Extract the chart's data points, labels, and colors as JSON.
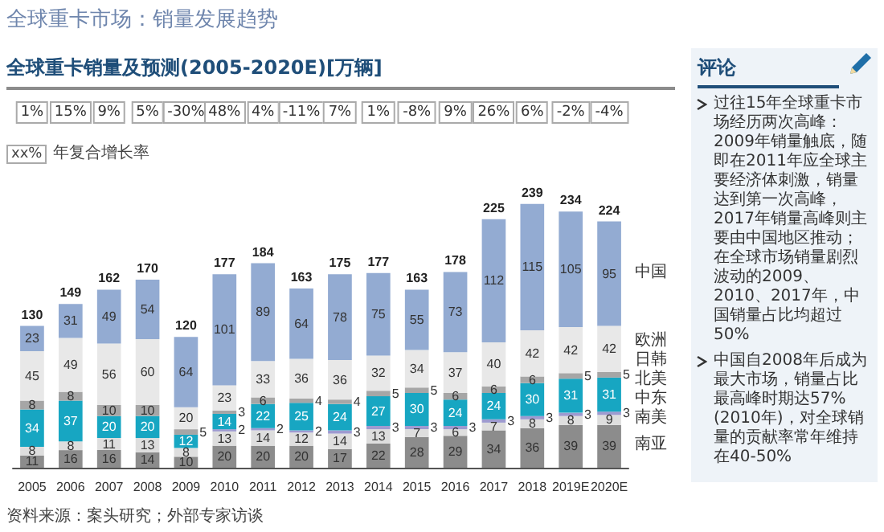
{
  "chart_data": {
    "type": "bar",
    "stacked": true,
    "data_labels": true,
    "legend": "right",
    "title": "全球重卡市场：销量发展趋势",
    "subtitle": "全球重卡销量及预测(2005-2020E)[万辆]",
    "categories": [
      "2005",
      "2006",
      "2007",
      "2008",
      "2009",
      "2010",
      "2011",
      "2012",
      "2013",
      "2014",
      "2015",
      "2016",
      "2017",
      "2018",
      "2019E",
      "2020E"
    ],
    "series": [
      {
        "name": "南亚",
        "color": "#8c8c8c",
        "values": [
          11,
          16,
          16,
          14,
          10,
          20,
          20,
          20,
          17,
          22,
          28,
          29,
          34,
          36,
          39,
          39
        ]
      },
      {
        "name": "南美",
        "color": "#dedede",
        "values": [
          8,
          8,
          11,
          13,
          8,
          13,
          14,
          12,
          14,
          13,
          7,
          6,
          7,
          8,
          8,
          9
        ]
      },
      {
        "name": "中东",
        "color": "#9e9bd0",
        "values": [
          null,
          null,
          null,
          null,
          null,
          2,
          2,
          2,
          3,
          3,
          3,
          3,
          3,
          3,
          3,
          3
        ]
      },
      {
        "name": "北美",
        "color": "#17a6c2",
        "values": [
          34,
          37,
          20,
          20,
          12,
          14,
          22,
          25,
          24,
          27,
          30,
          24,
          24,
          30,
          31,
          31
        ]
      },
      {
        "name": "日韩",
        "color": "#a6a6a6",
        "values": [
          8,
          8,
          10,
          10,
          5,
          3,
          6,
          4,
          4,
          5,
          5,
          6,
          6,
          6,
          5,
          5
        ]
      },
      {
        "name": "欧洲",
        "color": "#e8e8e8",
        "values": [
          45,
          49,
          56,
          60,
          20,
          23,
          33,
          36,
          36,
          32,
          34,
          37,
          40,
          42,
          42,
          42
        ]
      },
      {
        "name": "中国",
        "color": "#93abd2",
        "values": [
          23,
          31,
          49,
          54,
          64,
          101,
          89,
          64,
          78,
          75,
          55,
          73,
          112,
          115,
          105,
          95
        ]
      }
    ],
    "totals": [
      "130",
      "149",
      "162",
      "170",
      "120",
      "177",
      "184",
      "163",
      "175",
      "177",
      "163",
      "178",
      "225",
      "239",
      "234",
      "224"
    ],
    "annotations": [
      "1%",
      "15%",
      "9%",
      "5%",
      "-30%",
      "48%",
      "4%",
      "-11%",
      "7%",
      "1%",
      "-8%",
      "9%",
      "26%",
      "6%",
      "-2%",
      "-4%",
      "xx%",
      "年复合增长率",
      "评论",
      "过往15年全球重卡市场经历两次高峰：2009年销量触底，随即在2011年应全球主要经济体刺激，销量达到第一次高峰，2017年销量高峰则主要由中国地区推动；在全球市场销量剧烈波动的2009、2010、2017年，中国销量占比均超过50%",
      "中国自2008年后成为最大市场，销量占比最高峰时期达57%(2010年)，对全球销量的贡献率常年维持在40-50%",
      "资料来源：案头研究；外部专家访谈"
    ]
  }
}
